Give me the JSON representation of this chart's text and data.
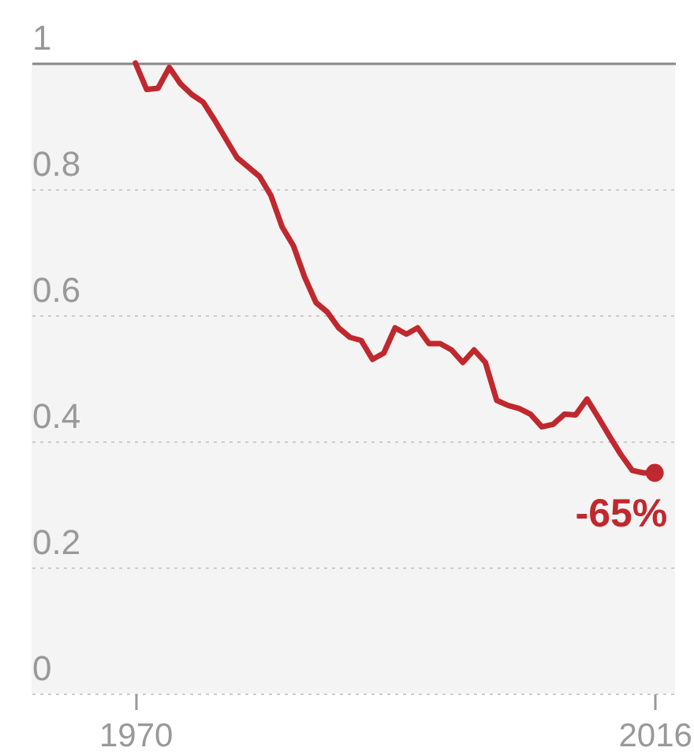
{
  "chart_data": {
    "type": "line",
    "x": [
      1970,
      1971,
      1972,
      1973,
      1974,
      1975,
      1976,
      1977,
      1978,
      1979,
      1980,
      1981,
      1982,
      1983,
      1984,
      1985,
      1986,
      1987,
      1988,
      1989,
      1990,
      1991,
      1992,
      1993,
      1994,
      1995,
      1996,
      1997,
      1998,
      1999,
      2000,
      2001,
      2002,
      2003,
      2004,
      2005,
      2006,
      2007,
      2008,
      2009,
      2010,
      2011,
      2012,
      2013,
      2014,
      2015,
      2016
    ],
    "series": [
      {
        "color": "#c0282d",
        "values": [
          1.0,
          0.958,
          0.96,
          0.993,
          0.967,
          0.95,
          0.938,
          0.91,
          0.88,
          0.85,
          0.835,
          0.82,
          0.79,
          0.74,
          0.71,
          0.66,
          0.62,
          0.605,
          0.58,
          0.565,
          0.56,
          0.53,
          0.54,
          0.58,
          0.57,
          0.58,
          0.555,
          0.555,
          0.545,
          0.525,
          0.545,
          0.525,
          0.465,
          0.457,
          0.452,
          0.443,
          0.423,
          0.427,
          0.443,
          0.442,
          0.467,
          0.438,
          0.408,
          0.379,
          0.354,
          0.35,
          0.35
        ]
      },
      {
        "type": "scatter",
        "color": "#c0282d",
        "x": [
          2016
        ],
        "values": [
          0.35
        ]
      }
    ],
    "xlim": [
      1960.8,
      2017.8
    ],
    "xticks": [
      1970,
      2016
    ],
    "ylim": [
      0,
      1
    ],
    "yticks": [
      0,
      0.2,
      0.4,
      0.6,
      0.8,
      1
    ],
    "grid": "y",
    "annotations": [
      {
        "text": "-65%",
        "x": 2016,
        "y": 0.35
      }
    ]
  }
}
